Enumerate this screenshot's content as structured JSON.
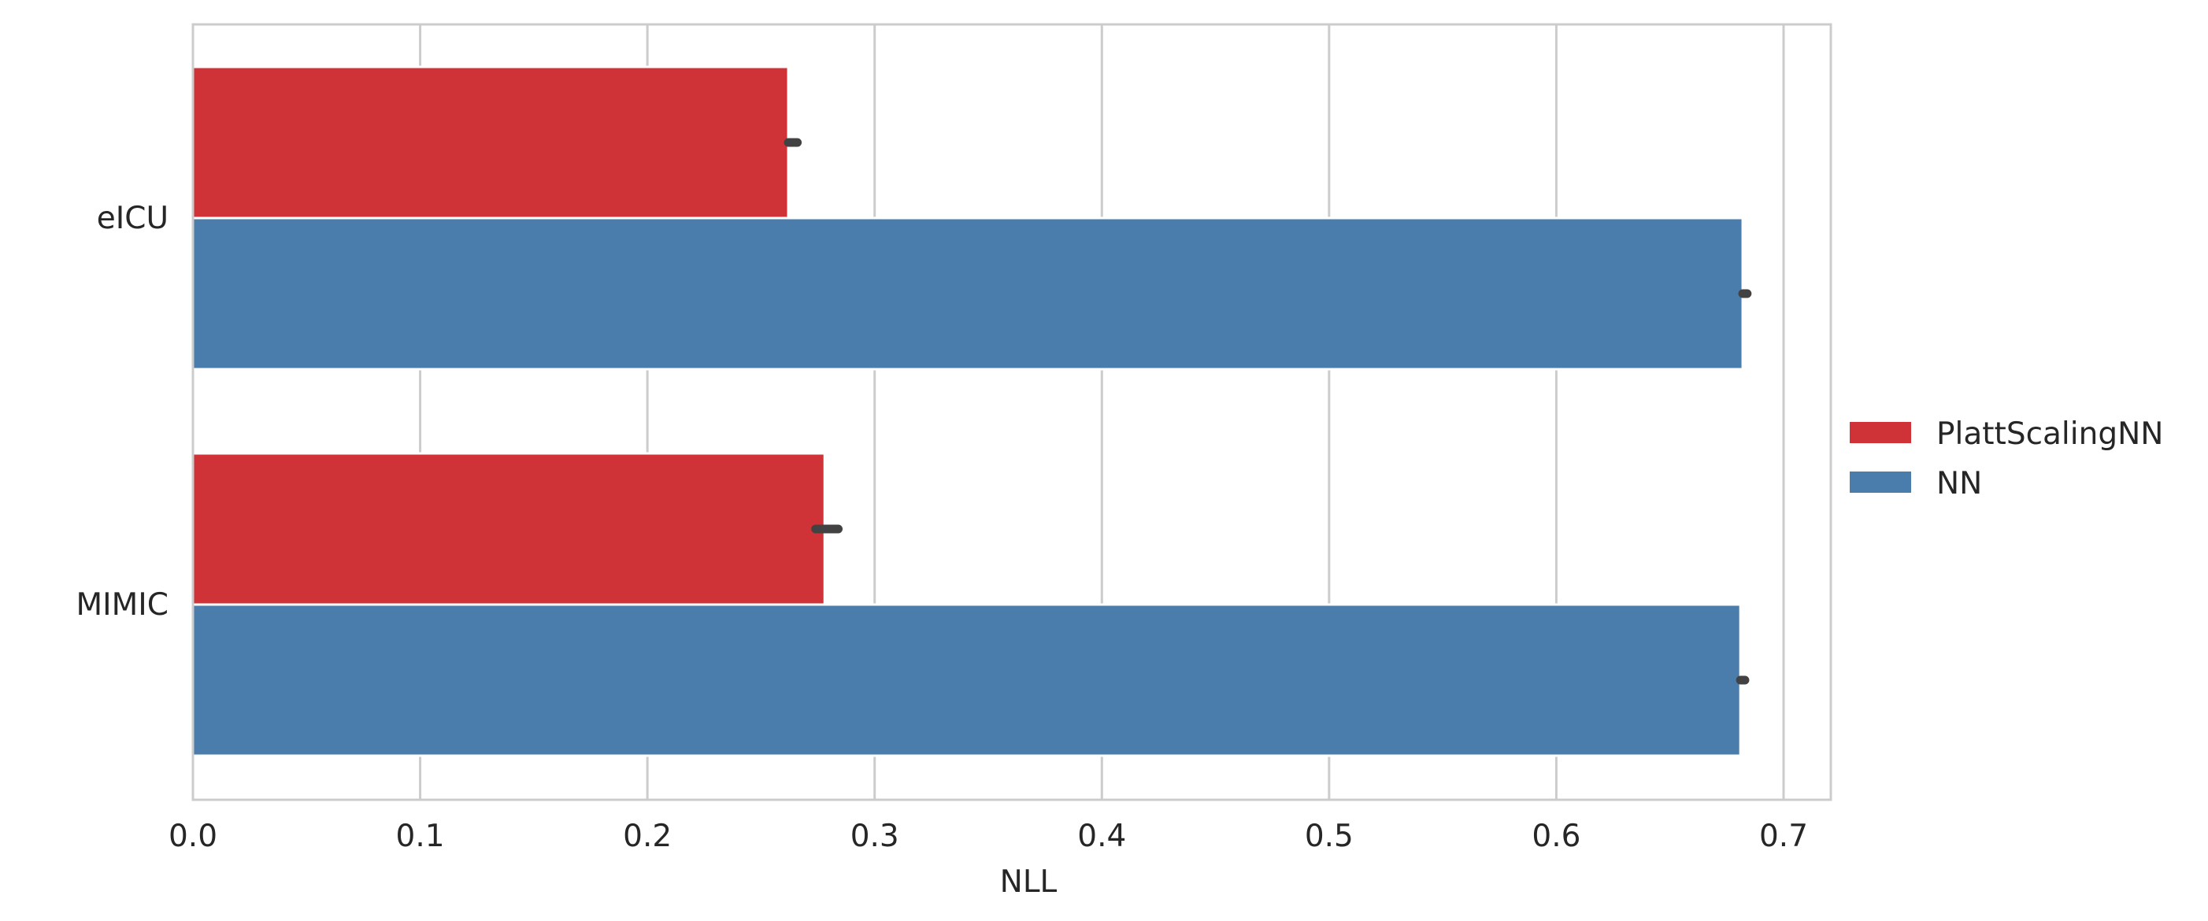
{
  "chart_data": {
    "type": "bar",
    "orientation": "horizontal",
    "categories": [
      "eICU",
      "MIMIC"
    ],
    "series": [
      {
        "name": "PlattScalingNN",
        "color": "#cf3237",
        "values": [
          0.262,
          0.278
        ],
        "error": [
          [
            0.262,
            0.266
          ],
          [
            0.274,
            0.284
          ]
        ]
      },
      {
        "name": "NN",
        "color": "#4a7dab",
        "values": [
          0.682,
          0.681
        ],
        "error": [
          [
            0.682,
            0.684
          ],
          [
            0.681,
            0.683
          ]
        ]
      }
    ],
    "xlabel": "NLL",
    "ylabel": "",
    "title": "",
    "xlim": [
      0,
      0.718
    ],
    "xticks": [
      "0.0",
      "0.1",
      "0.2",
      "0.3",
      "0.4",
      "0.5",
      "0.6",
      "0.7"
    ],
    "xtick_values": [
      0,
      0.1,
      0.2,
      0.3,
      0.4,
      0.5,
      0.6,
      0.7
    ],
    "grid": "vertical",
    "legend_position": "right"
  }
}
